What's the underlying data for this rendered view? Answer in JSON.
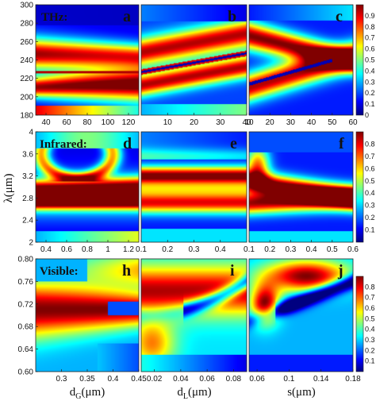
{
  "chart_data": [
    {
      "type": "heatmap",
      "letter": "a",
      "row_label": "THz:",
      "xlim": [
        30,
        130
      ],
      "ylim": [
        180,
        300
      ],
      "xticks": [
        40,
        60,
        80,
        100,
        120
      ],
      "yticks": [
        180,
        200,
        220,
        240,
        260,
        280,
        300
      ],
      "xlabel": "",
      "ylabel": "",
      "colorbar_ticks": [],
      "description_values": "reflectance map; bright red bands near 210 and 245, sharp horizontal line near 228"
    },
    {
      "type": "heatmap",
      "letter": "b",
      "xlim": [
        0,
        40
      ],
      "ylim": [
        180,
        300
      ],
      "xticks": [
        10,
        20,
        30,
        40
      ],
      "yticks": [],
      "xlabel": "",
      "ylabel": ""
    },
    {
      "type": "heatmap",
      "letter": "c",
      "xlim": [
        10,
        60
      ],
      "ylim": [
        180,
        300
      ],
      "xticks": [
        10,
        20,
        30,
        40,
        50,
        60
      ],
      "yticks": [],
      "xlabel": "",
      "ylabel": "",
      "colorbar_ticks": [
        "0.9",
        "0.8",
        "0.7",
        "0.6",
        "0.5",
        "0.4",
        "0.3",
        "0.2",
        "0.1",
        "0"
      ]
    },
    {
      "type": "heatmap",
      "letter": "d",
      "row_label": "Infrared:",
      "xlim": [
        0.3,
        1.3
      ],
      "ylim": [
        2.0,
        4.0
      ],
      "xticks": [
        "0.4",
        "0.6",
        "0.8",
        "1",
        "1.2"
      ],
      "yticks": [
        "2",
        "2.4",
        "2.8",
        "3.2",
        "3.6",
        "4"
      ],
      "xlabel": "",
      "ylabel": "λ(μm)"
    },
    {
      "type": "heatmap",
      "letter": "e",
      "xlim": [
        0.1,
        0.5
      ],
      "ylim": [
        2.0,
        4.0
      ],
      "xticks": [
        "0.1",
        "0.2",
        "0.3",
        "0.4"
      ],
      "yticks": [],
      "xlabel": "",
      "ylabel": ""
    },
    {
      "type": "heatmap",
      "letter": "f",
      "xlim": [
        0.1,
        0.6
      ],
      "ylim": [
        2.0,
        4.0
      ],
      "xticks": [
        "0.1",
        "0.2",
        "0.3",
        "0.4",
        "0.5",
        "0.6"
      ],
      "yticks": [],
      "xlabel": "",
      "ylabel": "",
      "colorbar_ticks": [
        "0.8",
        "0.7",
        "0.6",
        "0.5",
        "0.4",
        "0.3",
        "0.2",
        "0.1"
      ]
    },
    {
      "type": "heatmap",
      "letter": "h",
      "row_label": "Visible:",
      "xlim": [
        0.25,
        0.45
      ],
      "ylim": [
        0.6,
        0.8
      ],
      "xticks": [
        "0.3",
        "0.35",
        "0.4",
        "0.45"
      ],
      "yticks": [
        "0.60",
        "0.64",
        "0.68",
        "0.72",
        "0.76",
        "0.80"
      ],
      "xlabel": "d_G(μm)",
      "ylabel": ""
    },
    {
      "type": "heatmap",
      "letter": "i",
      "xlim": [
        0.01,
        0.09
      ],
      "ylim": [
        0.6,
        0.8
      ],
      "xticks": [
        "0.02",
        "0.04",
        "0.06",
        "0.08"
      ],
      "yticks": [],
      "xlabel": "d_L(μm)",
      "ylabel": ""
    },
    {
      "type": "heatmap",
      "letter": "j",
      "xlim": [
        0.05,
        0.18
      ],
      "ylim": [
        0.6,
        0.8
      ],
      "xticks": [
        "0.06",
        "0.1",
        "0.14",
        "0.18"
      ],
      "yticks": [],
      "xlabel": "s(μm)",
      "ylabel": "",
      "colorbar_ticks": [
        "0.8",
        "0.7",
        "0.6",
        "0.5",
        "0.4",
        "0.3",
        "0.2",
        "0.1"
      ]
    }
  ],
  "labels": {
    "thz": "THz:",
    "infrared": "Infrared:",
    "visible": "Visible:",
    "y_axis": "λ(μm)",
    "x_dg_main": "d",
    "x_dg_sub": "G",
    "x_dg_unit": "(μm)",
    "x_dl_main": "d",
    "x_dl_sub": "L",
    "x_dl_unit": "(μm)",
    "x_s": "s(μm)"
  },
  "colors": {
    "colormap": "jet",
    "jet_stops": [
      "#00007f",
      "#0000ff",
      "#007fff",
      "#00ffff",
      "#7fff7f",
      "#ffff00",
      "#ff7f00",
      "#ff0000",
      "#7f0000"
    ]
  }
}
